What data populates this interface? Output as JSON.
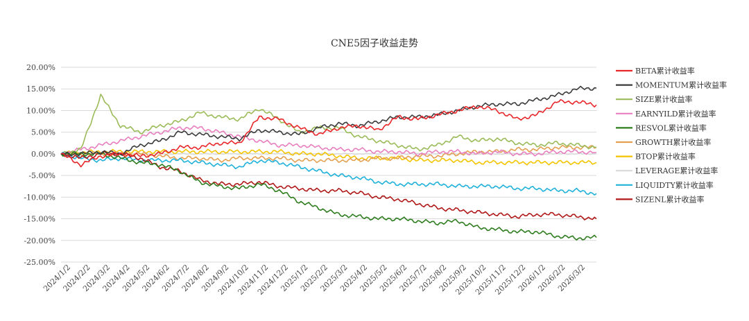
{
  "chart_data": {
    "type": "line",
    "title": "CNE5因子收益走势",
    "xlabel": "",
    "ylabel": "",
    "ylim": [
      -25,
      20
    ],
    "y_unit": "%",
    "y_ticks": [
      "20.00%",
      "15.00%",
      "10.00%",
      "5.00%",
      "0.00%",
      "-5.00%",
      "-10.00%",
      "-15.00%",
      "-20.00%",
      "-25.00%"
    ],
    "x_ticks": [
      "2024/1/2",
      "2024/2/2",
      "2024/3/2",
      "2024/4/2",
      "2024/5/2",
      "2024/6/2",
      "2024/7/2",
      "2024/8/2",
      "2024/9/2",
      "2024/10/2",
      "2024/11/2",
      "2024/12/2",
      "2025/1/2",
      "2025/2/2",
      "2025/3/2",
      "2025/4/2",
      "2025/5/2",
      "2025/6/2",
      "2025/7/2",
      "2025/8/2",
      "2025/9/2",
      "2025/10/2",
      "2025/11/2",
      "2025/12/2",
      "2026/1/2",
      "2026/2/2",
      "2026/3/2"
    ],
    "grid": "horizontal",
    "legend_position": "right",
    "series": [
      {
        "name": "BETA累计收益率",
        "color": "#e8262a",
        "values": [
          0,
          -2.5,
          -0.5,
          0,
          -0.5,
          0,
          1.5,
          1.5,
          2.5,
          2.5,
          8.5,
          8,
          6,
          4.5,
          6,
          6.5,
          5.5,
          8.5,
          8,
          9,
          10,
          11,
          10,
          8,
          9,
          12,
          12,
          11.3
        ]
      },
      {
        "name": "MOMENTUM累计收益率",
        "color": "#3a3a3a",
        "values": [
          0,
          0,
          0.5,
          0,
          2,
          3,
          5,
          4.5,
          4,
          3.5,
          5.5,
          5,
          4.5,
          6,
          7,
          6.5,
          7.5,
          8.5,
          8.5,
          9,
          10,
          11,
          11.5,
          11.5,
          12.5,
          13.5,
          15,
          15.2
        ]
      },
      {
        "name": "SIZE累计收益率",
        "color": "#9bbb59",
        "values": [
          0,
          1,
          13.5,
          6.5,
          5,
          6.5,
          7.5,
          9.5,
          8.5,
          8,
          10.5,
          8,
          5,
          6,
          6,
          4,
          3,
          2,
          1,
          2,
          4,
          3,
          3.5,
          2.5,
          2,
          2.5,
          2,
          1.5
        ]
      },
      {
        "name": "EARNYILD累计收益率",
        "color": "#e87fbf",
        "values": [
          0,
          1,
          2,
          3,
          4,
          5,
          6,
          6,
          5,
          4,
          3,
          2,
          2,
          1.5,
          1,
          1,
          0.5,
          0.5,
          0,
          0.5,
          0.5,
          0,
          0.5,
          0,
          0,
          0.5,
          0.5,
          0.3
        ]
      },
      {
        "name": "RESVOL累计收益率",
        "color": "#2e7d1f",
        "values": [
          0,
          0,
          0,
          -1,
          -2,
          -2.5,
          -4,
          -6.5,
          -7.5,
          -8,
          -7,
          -8.5,
          -11,
          -12.5,
          -14,
          -14.5,
          -15,
          -15,
          -15.5,
          -16,
          -15.5,
          -17,
          -17.5,
          -18,
          -18,
          -19,
          -19.5,
          -19.3
        ]
      },
      {
        "name": "GROWTH累计收益率",
        "color": "#e3a050",
        "values": [
          0,
          0,
          0,
          0,
          0,
          -0.5,
          -1,
          -1,
          -1.5,
          -1,
          -1,
          -1,
          -1.5,
          -1.5,
          -1.5,
          -1.5,
          -1,
          -1,
          -0.5,
          -0.5,
          0,
          0.5,
          0.5,
          1,
          1,
          1.5,
          1.5,
          1.5
        ]
      },
      {
        "name": "BTOP累计收益率",
        "color": "#f2c500",
        "values": [
          0,
          0.3,
          0.5,
          0.5,
          0.5,
          0.5,
          0.5,
          0.5,
          0.5,
          0.5,
          0.5,
          0.5,
          0,
          0,
          -0.5,
          -1,
          -1,
          -1,
          -1.5,
          -1.5,
          -1.5,
          -2,
          -2,
          -2,
          -2,
          -2,
          -2,
          -2
        ]
      },
      {
        "name": "LEVERAGE累计收益率",
        "color": "#d9d9d9",
        "values": [
          0,
          0,
          0,
          0,
          0,
          0,
          0,
          0,
          0,
          0,
          0,
          0,
          0,
          0,
          0,
          0,
          0,
          0,
          0,
          0,
          0,
          0,
          0,
          0,
          0,
          0,
          0,
          0
        ]
      },
      {
        "name": "LIQUIDTY累计收益率",
        "color": "#1fb1d9",
        "values": [
          0,
          -1,
          -1.5,
          -1,
          -1.5,
          -1.5,
          -1.5,
          -2,
          -2.5,
          -3,
          -1.5,
          -2,
          -3,
          -4,
          -5,
          -5.5,
          -6.5,
          -7,
          -7,
          -7,
          -7.5,
          -7.5,
          -7.5,
          -8,
          -8,
          -8.5,
          -8.5,
          -9.2
        ]
      },
      {
        "name": "SIZENL累计收益率",
        "color": "#b01818",
        "values": [
          0,
          -1,
          0,
          0,
          -1,
          -3,
          -4,
          -6,
          -7,
          -7,
          -6.5,
          -7.5,
          -8,
          -8.5,
          -8.5,
          -9,
          -10,
          -10.5,
          -11.5,
          -12.5,
          -13,
          -13.5,
          -14,
          -14.5,
          -14,
          -14,
          -14.5,
          -15
        ]
      }
    ]
  }
}
